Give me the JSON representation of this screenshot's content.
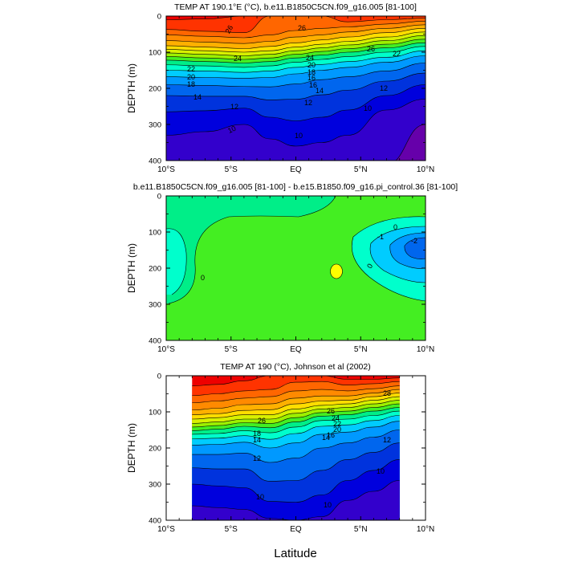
{
  "chart_data": [
    {
      "type": "heatmap",
      "subtype": "filled-contour",
      "title": "TEMP AT 190.1°E (°C), b.e11.B1850C5CN.f09_g16.005 [81-100]",
      "xlabel": "",
      "ylabel": "DEPTH (m)",
      "x_ticks": [
        "10°S",
        "5°S",
        "EQ",
        "5°N",
        "10°N"
      ],
      "x_tick_values": [
        -10,
        -5,
        0,
        5,
        10
      ],
      "xlim": [
        -10,
        10
      ],
      "y_ticks": [
        "0",
        "100",
        "200",
        "300",
        "400"
      ],
      "y_tick_values": [
        0,
        100,
        200,
        300,
        400
      ],
      "ylim": [
        0,
        400
      ],
      "y_inverted": true,
      "contour_labels": [
        "26",
        "26",
        "26",
        "24",
        "24",
        "22",
        "22",
        "20",
        "20",
        "18",
        "18",
        "16",
        "16",
        "14",
        "14",
        "12",
        "12",
        "12",
        "10",
        "10",
        "10"
      ],
      "profile": [
        {
          "lat": -10,
          "d": [
            0,
            10,
            37,
            52,
            68,
            82,
            92,
            102,
            112,
            122,
            135,
            150,
            168,
            190,
            220,
            265,
            330,
            410
          ]
        },
        {
          "lat": -7,
          "d": [
            0,
            8,
            42,
            56,
            72,
            86,
            96,
            106,
            116,
            126,
            138,
            152,
            170,
            192,
            222,
            262,
            320,
            410
          ]
        },
        {
          "lat": -4,
          "d": [
            0,
            0,
            46,
            60,
            76,
            90,
            100,
            110,
            120,
            130,
            142,
            156,
            172,
            195,
            222,
            255,
            300,
            410
          ]
        },
        {
          "lat": -2,
          "d": [
            0,
            0,
            0,
            52,
            70,
            84,
            96,
            106,
            116,
            126,
            138,
            152,
            170,
            196,
            232,
            280,
            340,
            410
          ]
        },
        {
          "lat": 0,
          "d": [
            0,
            0,
            0,
            40,
            58,
            74,
            86,
            96,
            106,
            116,
            128,
            142,
            160,
            188,
            230,
            290,
            360,
            410
          ]
        },
        {
          "lat": 2,
          "d": [
            0,
            0,
            0,
            34,
            52,
            66,
            78,
            88,
            98,
            108,
            120,
            134,
            150,
            176,
            218,
            280,
            350,
            410
          ]
        },
        {
          "lat": 4,
          "d": [
            0,
            0,
            16,
            30,
            44,
            58,
            70,
            80,
            90,
            100,
            112,
            126,
            142,
            168,
            205,
            260,
            330,
            410
          ]
        },
        {
          "lat": 7,
          "d": [
            0,
            0,
            10,
            22,
            34,
            46,
            58,
            68,
            78,
            88,
            100,
            114,
            128,
            152,
            180,
            220,
            260,
            410
          ]
        },
        {
          "lat": 10,
          "d": [
            0,
            0,
            6,
            14,
            24,
            34,
            44,
            54,
            64,
            74,
            84,
            96,
            110,
            130,
            158,
            190,
            230,
            300
          ]
        }
      ]
    },
    {
      "type": "heatmap",
      "subtype": "filled-contour",
      "title": "b.e11.B1850C5CN.f09_g16.005 [81-100] - b.e15.B1850.f09_g16.pi_control.36 [81-100]",
      "xlabel": "",
      "ylabel": "DEPTH (m)",
      "x_ticks": [
        "10°S",
        "5°S",
        "EQ",
        "5°N",
        "10°N"
      ],
      "x_tick_values": [
        -10,
        -5,
        0,
        5,
        10
      ],
      "xlim": [
        -10,
        10
      ],
      "y_ticks": [
        "0",
        "100",
        "200",
        "300",
        "400"
      ],
      "y_tick_values": [
        0,
        100,
        200,
        300,
        400
      ],
      "ylim": [
        0,
        400
      ],
      "y_inverted": true,
      "contour_labels": [
        "0",
        "0",
        "0",
        "-1",
        "-2"
      ]
    },
    {
      "type": "heatmap",
      "subtype": "filled-contour",
      "title": "TEMP AT 190 (°C), Johnson et al (2002)",
      "xlabel": "Latitude",
      "ylabel": "DEPTH (m)",
      "x_ticks": [
        "10°S",
        "5°S",
        "EQ",
        "5°N",
        "10°N"
      ],
      "x_tick_values": [
        -10,
        -5,
        0,
        5,
        10
      ],
      "xlim": [
        -10,
        10
      ],
      "data_xlim": [
        -8,
        8
      ],
      "y_ticks": [
        "0",
        "100",
        "200",
        "300",
        "400"
      ],
      "y_tick_values": [
        0,
        100,
        200,
        300,
        400
      ],
      "ylim": [
        0,
        400
      ],
      "y_inverted": true,
      "contour_labels": [
        "28",
        "26",
        "26",
        "24",
        "22",
        "20",
        "18",
        "16",
        "14",
        "14",
        "12",
        "12",
        "10",
        "10",
        "10"
      ],
      "profile": [
        {
          "lat": -8,
          "d": [
            0,
            28,
            55,
            75,
            95,
            108,
            120,
            132,
            142,
            152,
            162,
            175,
            192,
            218,
            255,
            300,
            360,
            420
          ]
        },
        {
          "lat": -6,
          "d": [
            0,
            24,
            50,
            70,
            90,
            105,
            116,
            128,
            138,
            148,
            160,
            173,
            190,
            218,
            258,
            305,
            365,
            420
          ]
        },
        {
          "lat": -4,
          "d": [
            0,
            14,
            42,
            62,
            80,
            96,
            108,
            120,
            130,
            140,
            152,
            166,
            184,
            214,
            258,
            310,
            370,
            420
          ]
        },
        {
          "lat": -2,
          "d": [
            0,
            0,
            38,
            58,
            78,
            94,
            108,
            120,
            132,
            144,
            158,
            176,
            200,
            240,
            292,
            348,
            395,
            420
          ]
        },
        {
          "lat": 0,
          "d": [
            0,
            0,
            18,
            42,
            62,
            78,
            92,
            104,
            116,
            128,
            142,
            160,
            186,
            228,
            290,
            350,
            400,
            420
          ]
        },
        {
          "lat": 2,
          "d": [
            0,
            0,
            16,
            38,
            56,
            70,
            82,
            92,
            102,
            112,
            124,
            140,
            162,
            200,
            262,
            330,
            390,
            420
          ]
        },
        {
          "lat": 4,
          "d": [
            0,
            10,
            26,
            42,
            56,
            68,
            78,
            88,
            98,
            108,
            120,
            136,
            156,
            186,
            232,
            290,
            345,
            420
          ]
        },
        {
          "lat": 6,
          "d": [
            0,
            10,
            22,
            36,
            48,
            58,
            68,
            78,
            88,
            98,
            110,
            124,
            142,
            170,
            212,
            262,
            320,
            420
          ]
        },
        {
          "lat": 8,
          "d": [
            0,
            6,
            16,
            28,
            38,
            48,
            58,
            68,
            78,
            88,
            98,
            110,
            126,
            150,
            186,
            232,
            290,
            400
          ]
        }
      ]
    }
  ]
}
